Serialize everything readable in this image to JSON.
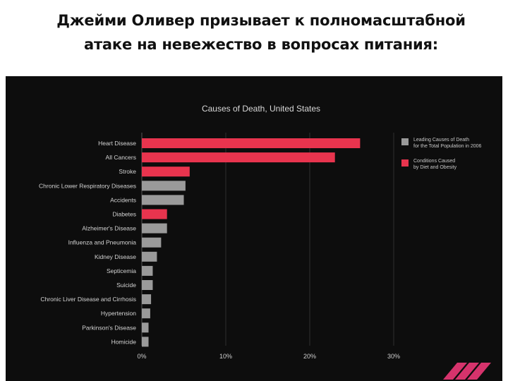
{
  "slide": {
    "title_line1": "Джейми Оливер призывает к полномасштабной",
    "title_line2": "атаке на невежество в вопросах питания:"
  },
  "chart_data": {
    "type": "bar",
    "orientation": "horizontal",
    "title": "Causes of Death, United States",
    "categories": [
      "Heart Disease",
      "All Cancers",
      "Stroke",
      "Chronic Lower Respiratory Diseases",
      "Accidents",
      "Diabetes",
      "Alzheimer's Disease",
      "Influenza and Pneumonia",
      "Kidney Disease",
      "Septicemia",
      "Suicide",
      "Chronic Liver Disease and Cirrhosis",
      "Hypertension",
      "Parkinson's Disease",
      "Homicide"
    ],
    "values": [
      26.0,
      23.0,
      5.7,
      5.2,
      5.0,
      3.0,
      3.0,
      2.3,
      1.8,
      1.3,
      1.3,
      1.1,
      1.0,
      0.8,
      0.8
    ],
    "diet_related": [
      true,
      true,
      true,
      false,
      false,
      true,
      false,
      false,
      false,
      false,
      false,
      false,
      false,
      false,
      false
    ],
    "xlim": [
      0,
      30
    ],
    "xticks": [
      "0%",
      "10%",
      "20%",
      "30%"
    ],
    "xtick_values": [
      0,
      10,
      20,
      30
    ],
    "grid": true,
    "legend_position": "top-right",
    "legend": [
      {
        "line1": "Leading Causes of Death",
        "line2": "for the Total Population in 2006",
        "color": "#9a9a9a"
      },
      {
        "line1": "Conditions Caused",
        "line2": "by Diet and Obesity",
        "color": "#e8344e"
      }
    ],
    "colors": {
      "diet": "#e8344e",
      "other": "#9a9a9a",
      "background": "#0d0d0d",
      "logo": "#d6336c"
    }
  }
}
